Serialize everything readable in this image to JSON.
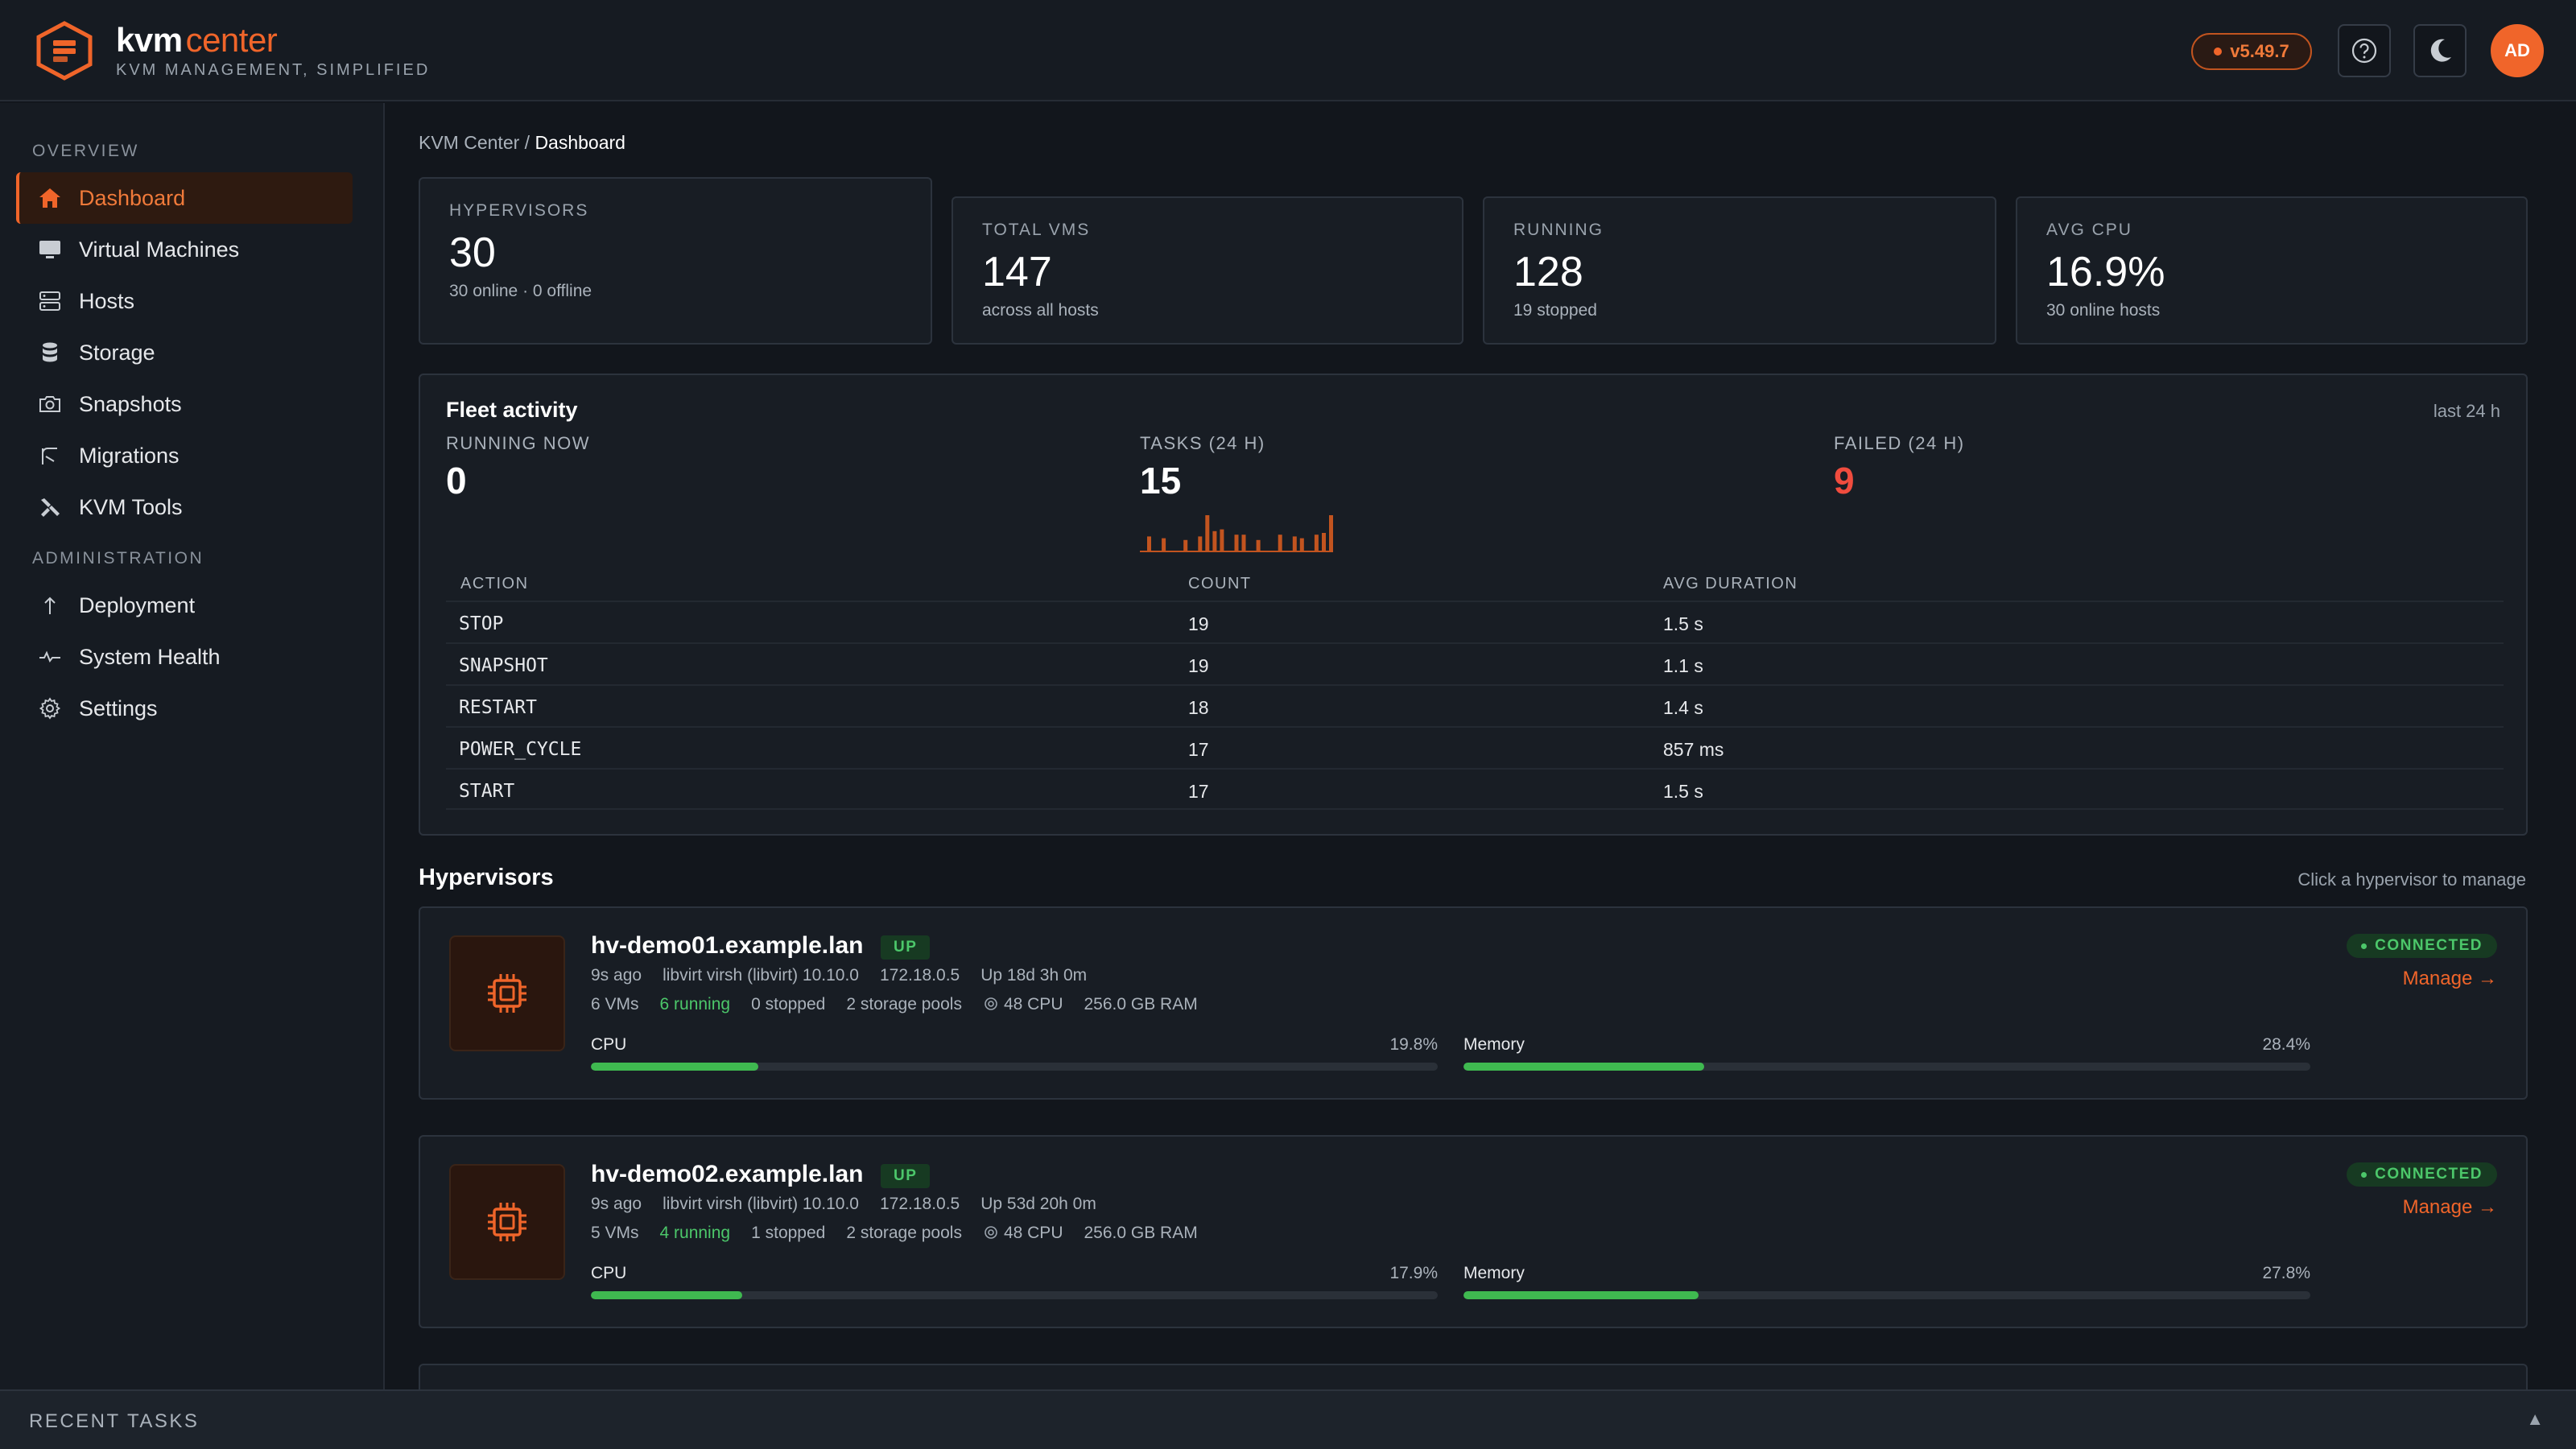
{
  "header": {
    "brand_kvm": "kvm",
    "brand_center": "center",
    "tagline": "KVM MANAGEMENT, SIMPLIFIED",
    "version": "v5.49.7",
    "avatar_initials": "AD",
    "help_icon": "help-circle-icon",
    "theme_icon": "moon-icon"
  },
  "sidebar": {
    "overview_label": "OVERVIEW",
    "admin_label": "ADMINISTRATION",
    "overview_items": [
      {
        "label": "Dashboard",
        "icon": "home-icon",
        "active": true
      },
      {
        "label": "Virtual Machines",
        "icon": "monitor-icon"
      },
      {
        "label": "Hosts",
        "icon": "server-icon"
      },
      {
        "label": "Storage",
        "icon": "database-icon"
      },
      {
        "label": "Snapshots",
        "icon": "camera-icon"
      },
      {
        "label": "Migrations",
        "icon": "migrate-icon"
      },
      {
        "label": "KVM Tools",
        "icon": "tools-icon"
      }
    ],
    "admin_items": [
      {
        "label": "Deployment",
        "icon": "arrow-up-icon"
      },
      {
        "label": "System Health",
        "icon": "pulse-icon"
      },
      {
        "label": "Settings",
        "icon": "gear-icon"
      }
    ]
  },
  "breadcrumb": {
    "root": "KVM Center",
    "separator": "/",
    "current": "Dashboard"
  },
  "stats": [
    {
      "label": "HYPERVISORS",
      "value": "30",
      "sub": "30 online · 0 offline"
    },
    {
      "label": "TOTAL VMS",
      "value": "147",
      "sub": "across all hosts"
    },
    {
      "label": "RUNNING",
      "value": "128",
      "sub": "19 stopped"
    },
    {
      "label": "AVG CPU",
      "value": "16.9%",
      "sub": "30 online hosts"
    }
  ],
  "fleet": {
    "title": "Fleet activity",
    "period": "last 24 h",
    "running_label": "RUNNING NOW",
    "running_value": "0",
    "tasks_label": "TASKS (24 H)",
    "tasks_value": "15",
    "failed_label": "FAILED (24 H)",
    "failed_value": "9",
    "sparkline": [
      0,
      0.4,
      0,
      0.35,
      0,
      0,
      0.3,
      0,
      0.4,
      1.0,
      0.55,
      0.6,
      0,
      0.45,
      0.45,
      0,
      0.3,
      0,
      0,
      0.45,
      0,
      0.4,
      0.35,
      0,
      0.45,
      0.5,
      1.0
    ],
    "columns": [
      "ACTION",
      "COUNT",
      "AVG DURATION"
    ],
    "rows": [
      {
        "action": "STOP",
        "count": "19",
        "avg": "1.5 s"
      },
      {
        "action": "SNAPSHOT",
        "count": "19",
        "avg": "1.1 s"
      },
      {
        "action": "RESTART",
        "count": "18",
        "avg": "1.4 s"
      },
      {
        "action": "POWER_CYCLE",
        "count": "17",
        "avg": "857 ms"
      },
      {
        "action": "START",
        "count": "17",
        "avg": "1.5 s"
      }
    ]
  },
  "hypervisors_section": {
    "title": "Hypervisors",
    "hint": "Click a hypervisor to manage"
  },
  "hypervisors": [
    {
      "name": "hv-demo01.example.lan",
      "status": "UP",
      "seen": "9s ago",
      "driver": "libvirt virsh (libvirt) 10.10.0",
      "ip": "172.18.0.5",
      "uptime": "Up 18d 3h 0m",
      "vms": "6 VMs",
      "running": "6 running",
      "stopped": "0 stopped",
      "pools": "2 storage pools",
      "cpu": "48 CPU",
      "ram": "256.0 GB RAM",
      "cpu_label": "CPU",
      "cpu_pct": "19.8%",
      "cpu_frac": 0.198,
      "mem_label": "Memory",
      "mem_pct": "28.4%",
      "mem_frac": 0.284,
      "connection": "CONNECTED",
      "manage": "Manage →"
    },
    {
      "name": "hv-demo02.example.lan",
      "status": "UP",
      "seen": "9s ago",
      "driver": "libvirt virsh (libvirt) 10.10.0",
      "ip": "172.18.0.5",
      "uptime": "Up 53d 20h 0m",
      "vms": "5 VMs",
      "running": "4 running",
      "stopped": "1 stopped",
      "pools": "2 storage pools",
      "cpu": "48 CPU",
      "ram": "256.0 GB RAM",
      "cpu_label": "CPU",
      "cpu_pct": "17.9%",
      "cpu_frac": 0.179,
      "mem_label": "Memory",
      "mem_pct": "27.8%",
      "mem_frac": 0.278,
      "connection": "CONNECTED",
      "manage": "Manage →"
    }
  ],
  "recent_tasks": {
    "label": "RECENT TASKS",
    "caret": "▲"
  },
  "colors": {
    "accent": "#f0652a",
    "success": "#3fb950",
    "danger": "#f04c3e",
    "background": "#12161c"
  }
}
